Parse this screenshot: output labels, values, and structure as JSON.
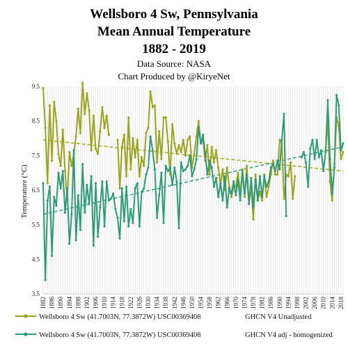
{
  "chart_data": {
    "type": "line",
    "title_lines": [
      "Wellsboro 4 Sw, Pennsylvania",
      "Mean Annual Temperature",
      "1882 - 2019"
    ],
    "subtitle_lines": [
      "Data Source: NASA",
      "Chart Produced by @KiryeNet"
    ],
    "ylabel": "Temperature (°C)",
    "ylim": [
      3.5,
      9.5
    ],
    "yticks": [
      3.5,
      4.5,
      5.5,
      6.5,
      7.5,
      8.5,
      9.5
    ],
    "xlim": [
      1882,
      2019
    ],
    "xticks": [
      1882,
      1886,
      1890,
      1894,
      1898,
      1902,
      1906,
      1910,
      1914,
      1918,
      1922,
      1926,
      1930,
      1934,
      1938,
      1942,
      1946,
      1950,
      1954,
      1958,
      1962,
      1966,
      1970,
      1974,
      1978,
      1982,
      1986,
      1990,
      1994,
      1998,
      2002,
      2006,
      2010,
      2014,
      2018
    ],
    "grid": "vertical",
    "series": [
      {
        "name": "Wellsboro 4 Sw (41.7003N, 77.3872W) USC00369408",
        "source": "GHCN V4 Unadjusted",
        "color": "#9aa41c",
        "trend_color": "#a3ab2e",
        "trend": [
          [
            1882,
            7.95
          ],
          [
            2019,
            7.05
          ]
        ],
        "points": [
          [
            1882,
            9.45
          ],
          [
            1883,
            8.3
          ],
          [
            1884,
            6.7
          ],
          [
            1885,
            8.95
          ],
          [
            1886,
            7.35
          ],
          [
            1887,
            9.05
          ],
          [
            1888,
            8.5
          ],
          [
            1889,
            7.55
          ],
          [
            1890,
            7.2
          ],
          [
            1891,
            8.25
          ],
          [
            1892,
            7.05
          ],
          [
            1893,
            6.2
          ],
          [
            1894,
            7.6
          ],
          [
            1895,
            7.2
          ],
          [
            1896,
            7.55
          ],
          [
            1897,
            8.05
          ],
          [
            1898,
            8.85
          ],
          [
            1899,
            8.15
          ],
          [
            1900,
            9.6
          ],
          [
            1901,
            8.7
          ],
          [
            1902,
            9.3
          ],
          [
            1903,
            8.8
          ],
          [
            1904,
            7.65
          ],
          [
            1905,
            8.65
          ],
          [
            1906,
            7.7
          ],
          [
            1907,
            7.55
          ],
          [
            1908,
            8.2
          ],
          [
            1909,
            8.9
          ],
          [
            1910,
            8.3
          ],
          [
            1911,
            8.65
          ],
          [
            1912,
            8.1
          ],
          [
            1916,
            7.95
          ],
          [
            1917,
            6.55
          ],
          [
            1918,
            7.75
          ],
          [
            1919,
            8.1
          ],
          [
            1920,
            6.9
          ],
          [
            1921,
            8.6
          ],
          [
            1922,
            7.1
          ],
          [
            1923,
            8.0
          ],
          [
            1924,
            7.45
          ],
          [
            1925,
            7.95
          ],
          [
            1926,
            6.9
          ],
          [
            1927,
            7.45
          ],
          [
            1928,
            7.2
          ],
          [
            1929,
            8.15
          ],
          [
            1930,
            8.3
          ],
          [
            1931,
            9.35
          ],
          [
            1932,
            8.9
          ],
          [
            1933,
            8.95
          ],
          [
            1934,
            7.3
          ],
          [
            1935,
            8.2
          ],
          [
            1936,
            7.4
          ],
          [
            1937,
            8.6
          ],
          [
            1938,
            8.6
          ],
          [
            1939,
            7.9
          ],
          [
            1940,
            6.95
          ],
          [
            1941,
            8.4
          ],
          [
            1942,
            7.85
          ],
          [
            1943,
            7.55
          ],
          [
            1944,
            7.8
          ],
          [
            1945,
            7.6
          ],
          [
            1946,
            7.95
          ],
          [
            1947,
            7.5
          ],
          [
            1948,
            7.95
          ],
          [
            1949,
            8.05
          ],
          [
            1950,
            7.15
          ],
          [
            1951,
            7.55
          ],
          [
            1952,
            8.05
          ],
          [
            1953,
            8.5
          ],
          [
            1954,
            7.85
          ],
          [
            1955,
            7.95
          ],
          [
            1956,
            7.35
          ],
          [
            1957,
            7.8
          ],
          [
            1958,
            6.95
          ],
          [
            1959,
            7.75
          ],
          [
            1960,
            7.3
          ],
          [
            1961,
            7.65
          ],
          [
            1962,
            7.15
          ],
          [
            1963,
            6.65
          ],
          [
            1964,
            7.1
          ],
          [
            1965,
            6.5
          ],
          [
            1966,
            7.15
          ],
          [
            1967,
            6.6
          ],
          [
            1968,
            6.3
          ],
          [
            1969,
            6.6
          ],
          [
            1970,
            6.6
          ],
          [
            1971,
            7.0
          ],
          [
            1972,
            6.35
          ],
          [
            1973,
            7.1
          ],
          [
            1974,
            6.3
          ],
          [
            1975,
            7.2
          ],
          [
            1976,
            6.1
          ],
          [
            1977,
            6.6
          ],
          [
            1978,
            5.65
          ],
          [
            1979,
            6.95
          ],
          [
            1980,
            6.2
          ],
          [
            1981,
            6.45
          ],
          [
            1982,
            6.2
          ],
          [
            1983,
            6.95
          ],
          [
            1984,
            6.3
          ],
          [
            1985,
            6.6
          ],
          [
            1986,
            6.95
          ],
          [
            1987,
            7.35
          ],
          [
            1988,
            6.95
          ],
          [
            1989,
            6.95
          ],
          [
            1990,
            7.95
          ],
          [
            1991,
            7.85
          ],
          [
            1992,
            6.25
          ],
          [
            1993,
            6.95
          ],
          [
            1994,
            6.9
          ],
          [
            1995,
            7.3
          ],
          [
            1996,
            6.25
          ],
          [
            1997,
            6.9
          ],
          [
            2011,
            7.65
          ],
          [
            2012,
            8.5
          ],
          [
            2013,
            6.75
          ],
          [
            2014,
            6.2
          ],
          [
            2015,
            7.25
          ],
          [
            2016,
            8.6
          ],
          [
            2017,
            8.35
          ],
          [
            2018,
            7.4
          ],
          [
            2019,
            7.6
          ]
        ]
      },
      {
        "name": "Wellsboro 4 Sw (41.7003N, 77.3872W) USC00369408",
        "source": "GHCN V4 adj - homogenized",
        "color": "#2e9a78",
        "trend_color": "#3f9e82",
        "trend": [
          [
            1882,
            5.8
          ],
          [
            2019,
            7.75
          ]
        ],
        "points": [
          [
            1882,
            6.7
          ],
          [
            1883,
            3.9
          ],
          [
            1884,
            6.2
          ],
          [
            1885,
            6.6
          ],
          [
            1886,
            4.6
          ],
          [
            1887,
            6.3
          ],
          [
            1888,
            6.05
          ],
          [
            1889,
            7.0
          ],
          [
            1890,
            6.55
          ],
          [
            1891,
            7.05
          ],
          [
            1892,
            5.85
          ],
          [
            1893,
            6.55
          ],
          [
            1894,
            4.95
          ],
          [
            1895,
            5.8
          ],
          [
            1896,
            7.65
          ],
          [
            1897,
            5.05
          ],
          [
            1898,
            6.35
          ],
          [
            1899,
            5.35
          ],
          [
            1900,
            7.25
          ],
          [
            1901,
            5.85
          ],
          [
            1902,
            6.65
          ],
          [
            1903,
            6.1
          ],
          [
            1904,
            6.9
          ],
          [
            1905,
            4.9
          ],
          [
            1906,
            6.7
          ],
          [
            1907,
            5.15
          ],
          [
            1908,
            6.0
          ],
          [
            1909,
            6.75
          ],
          [
            1910,
            5.45
          ],
          [
            1911,
            6.75
          ],
          [
            1912,
            6.2
          ],
          [
            1913,
            6.25
          ],
          [
            1914,
            6.4
          ],
          [
            1915,
            5.95
          ],
          [
            1916,
            5.7
          ],
          [
            1917,
            5.1
          ],
          [
            1918,
            6.55
          ],
          [
            1919,
            5.6
          ],
          [
            1920,
            6.6
          ],
          [
            1921,
            5.45
          ],
          [
            1922,
            5.95
          ],
          [
            1923,
            5.55
          ],
          [
            1924,
            6.55
          ],
          [
            1925,
            6.7
          ],
          [
            1926,
            5.45
          ],
          [
            1927,
            6.45
          ],
          [
            1928,
            6.55
          ],
          [
            1929,
            6.95
          ],
          [
            1930,
            7.15
          ],
          [
            1931,
            8.05
          ],
          [
            1932,
            7.65
          ],
          [
            1933,
            7.1
          ],
          [
            1934,
            5.7
          ],
          [
            1935,
            6.35
          ],
          [
            1936,
            7.0
          ],
          [
            1937,
            5.55
          ],
          [
            1938,
            7.2
          ],
          [
            1939,
            7.05
          ],
          [
            1940,
            7.15
          ],
          [
            1941,
            6.65
          ],
          [
            1942,
            7.15
          ],
          [
            1943,
            6.75
          ],
          [
            1944,
            5.4
          ],
          [
            1945,
            7.3
          ],
          [
            1946,
            7.05
          ],
          [
            1947,
            7.1
          ],
          [
            1948,
            7.2
          ],
          [
            1949,
            7.5
          ],
          [
            1950,
            6.9
          ],
          [
            1951,
            7.1
          ],
          [
            1952,
            7.4
          ],
          [
            1953,
            8.3
          ],
          [
            1954,
            7.85
          ],
          [
            1955,
            8.1
          ],
          [
            1956,
            7.55
          ],
          [
            1957,
            6.95
          ],
          [
            1958,
            7.35
          ],
          [
            1959,
            7.15
          ],
          [
            1960,
            6.6
          ],
          [
            1961,
            6.85
          ],
          [
            1962,
            6.3
          ],
          [
            1963,
            6.7
          ],
          [
            1964,
            6.2
          ],
          [
            1965,
            6.9
          ],
          [
            1966,
            6.0
          ],
          [
            1967,
            6.55
          ],
          [
            1968,
            6.4
          ],
          [
            1969,
            6.75
          ],
          [
            1970,
            6.35
          ],
          [
            1971,
            6.8
          ],
          [
            1972,
            6.2
          ],
          [
            1973,
            7.05
          ],
          [
            1974,
            6.4
          ],
          [
            1975,
            6.95
          ],
          [
            1976,
            6.1
          ],
          [
            1977,
            6.85
          ],
          [
            1978,
            6.0
          ],
          [
            1979,
            6.8
          ],
          [
            1980,
            6.2
          ],
          [
            1981,
            6.9
          ],
          [
            1982,
            6.3
          ],
          [
            1983,
            6.9
          ],
          [
            1984,
            6.6
          ],
          [
            1985,
            6.75
          ],
          [
            1986,
            7.15
          ],
          [
            1987,
            7.25
          ],
          [
            1988,
            7.05
          ],
          [
            1989,
            7.35
          ],
          [
            1990,
            7.1
          ],
          [
            1991,
            7.95
          ],
          [
            1992,
            8.7
          ],
          [
            1993,
            5.75
          ],
          [
            2000,
            7.45
          ],
          [
            2001,
            7.6
          ],
          [
            2002,
            7.3
          ],
          [
            2003,
            6.6
          ],
          [
            2004,
            7.7
          ],
          [
            2005,
            7.95
          ],
          [
            2006,
            7.4
          ],
          [
            2007,
            7.95
          ],
          [
            2008,
            7.45
          ],
          [
            2009,
            7.65
          ],
          [
            2010,
            7.05
          ],
          [
            2011,
            7.6
          ],
          [
            2012,
            9.1
          ],
          [
            2013,
            7.4
          ],
          [
            2014,
            6.4
          ],
          [
            2015,
            7.15
          ],
          [
            2016,
            9.25
          ],
          [
            2017,
            8.95
          ],
          [
            2018,
            7.65
          ],
          [
            2019,
            7.85
          ]
        ]
      }
    ]
  }
}
